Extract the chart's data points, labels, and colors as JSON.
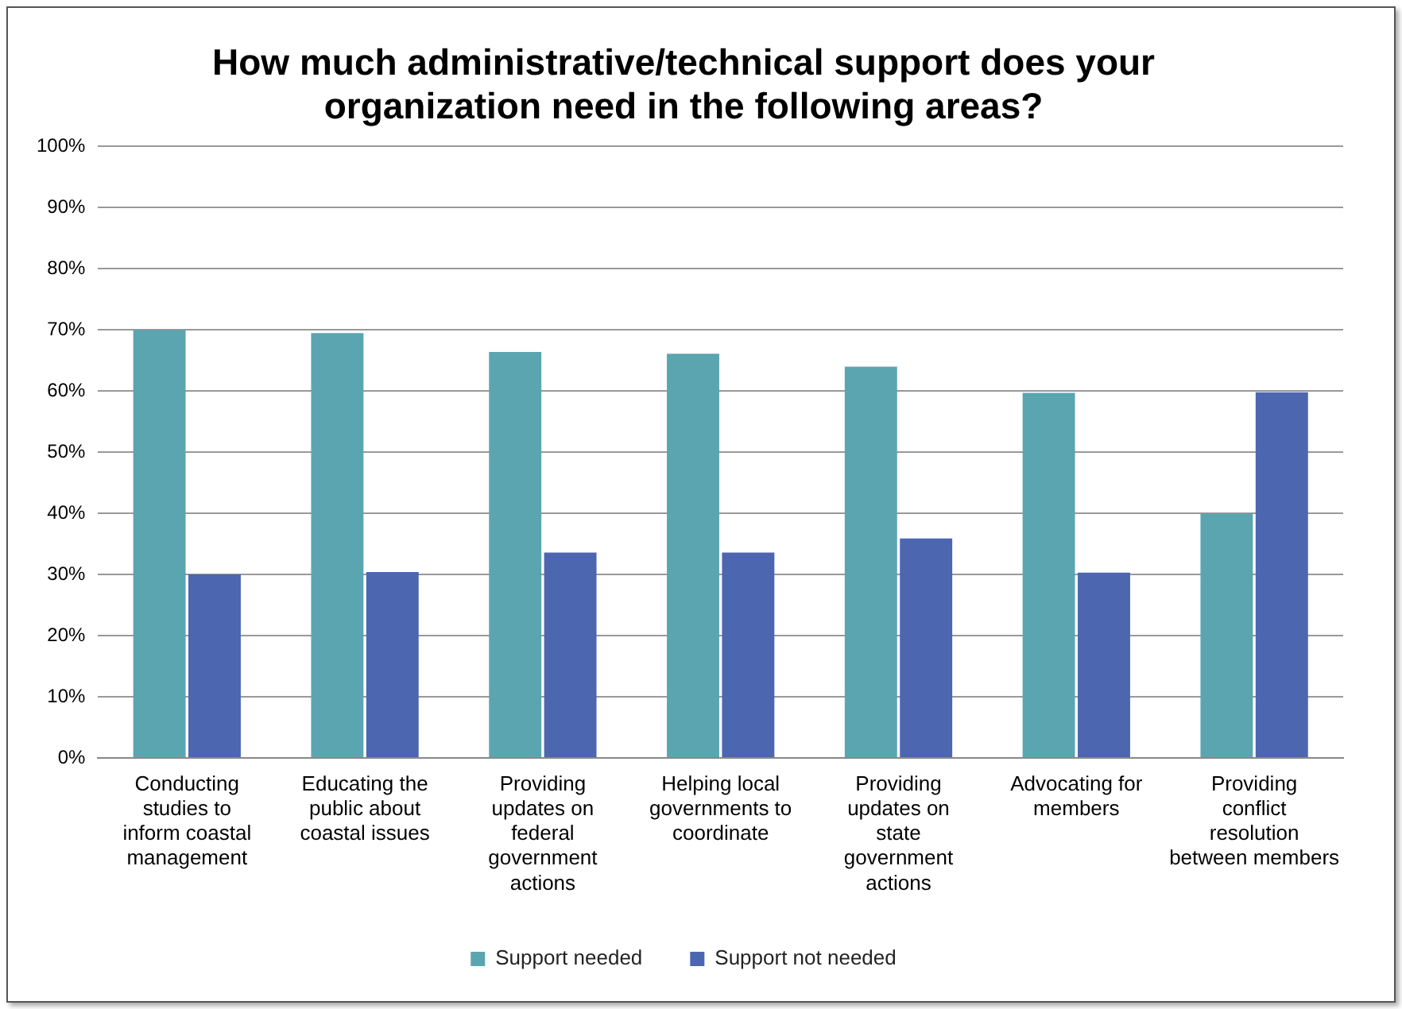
{
  "chart_data": {
    "type": "bar",
    "title": "How much administrative/technical support does your organization need in the following areas?",
    "categories": [
      "Conducting studies to inform coastal management",
      "Educating the public about coastal issues",
      "Providing updates on federal government actions",
      "Helping local governments to coordinate",
      "Providing updates on state government actions",
      "Advocating for members",
      "Providing conflict resolution between members"
    ],
    "series": [
      {
        "name": "Support needed",
        "color": "#5ba5b1",
        "values": [
          70,
          69.5,
          66.4,
          66.1,
          64,
          59.7,
          40
        ]
      },
      {
        "name": "Support not needed",
        "color": "#4c66b0",
        "values": [
          30,
          30.4,
          33.6,
          33.6,
          35.9,
          30.3,
          59.8
        ]
      }
    ],
    "ylim": [
      0,
      100
    ],
    "yticks": [
      {
        "value": 0,
        "label": "0%"
      },
      {
        "value": 10,
        "label": "10%"
      },
      {
        "value": 20,
        "label": "20%"
      },
      {
        "value": 30,
        "label": "30%"
      },
      {
        "value": 40,
        "label": "40%"
      },
      {
        "value": 50,
        "label": "50%"
      },
      {
        "value": 60,
        "label": "60%"
      },
      {
        "value": 70,
        "label": "70%"
      },
      {
        "value": 80,
        "label": "80%"
      },
      {
        "value": 90,
        "label": "90%"
      },
      {
        "value": 100,
        "label": "100%"
      }
    ],
    "grid": "y",
    "legend": "bottom"
  }
}
